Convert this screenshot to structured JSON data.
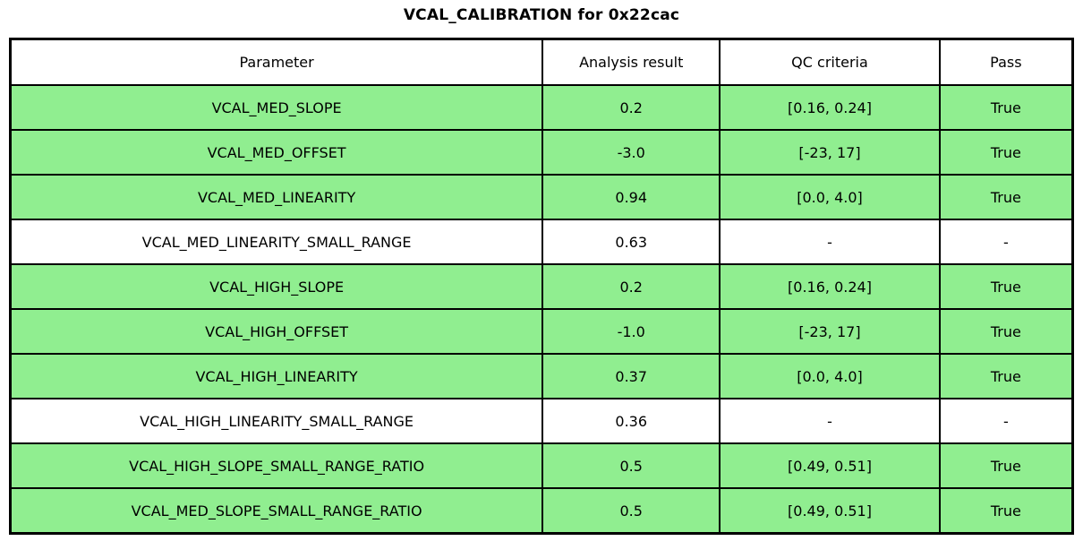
{
  "title": "VCAL_CALIBRATION for 0x22cac",
  "colors": {
    "pass_row_bg": "#90ee90",
    "neutral_row_bg": "#ffffff",
    "border": "#000000"
  },
  "table": {
    "columns": [
      "Parameter",
      "Analysis result",
      "QC criteria",
      "Pass"
    ],
    "rows": [
      {
        "parameter": "VCAL_MED_SLOPE",
        "result": "0.2",
        "qc": "[0.16, 0.24]",
        "pass": "True"
      },
      {
        "parameter": "VCAL_MED_OFFSET",
        "result": "-3.0",
        "qc": "[-23, 17]",
        "pass": "True"
      },
      {
        "parameter": "VCAL_MED_LINEARITY",
        "result": "0.94",
        "qc": "[0.0, 4.0]",
        "pass": "True"
      },
      {
        "parameter": "VCAL_MED_LINEARITY_SMALL_RANGE",
        "result": "0.63",
        "qc": "-",
        "pass": "-"
      },
      {
        "parameter": "VCAL_HIGH_SLOPE",
        "result": "0.2",
        "qc": "[0.16, 0.24]",
        "pass": "True"
      },
      {
        "parameter": "VCAL_HIGH_OFFSET",
        "result": "-1.0",
        "qc": "[-23, 17]",
        "pass": "True"
      },
      {
        "parameter": "VCAL_HIGH_LINEARITY",
        "result": "0.37",
        "qc": "[0.0, 4.0]",
        "pass": "True"
      },
      {
        "parameter": "VCAL_HIGH_LINEARITY_SMALL_RANGE",
        "result": "0.36",
        "qc": "-",
        "pass": "-"
      },
      {
        "parameter": "VCAL_HIGH_SLOPE_SMALL_RANGE_RATIO",
        "result": "0.5",
        "qc": "[0.49, 0.51]",
        "pass": "True"
      },
      {
        "parameter": "VCAL_MED_SLOPE_SMALL_RANGE_RATIO",
        "result": "0.5",
        "qc": "[0.49, 0.51]",
        "pass": "True"
      }
    ]
  },
  "chart_data": {
    "type": "table",
    "title": "VCAL_CALIBRATION for 0x22cac",
    "columns": [
      "Parameter",
      "Analysis result",
      "QC criteria",
      "Pass"
    ],
    "rows": [
      [
        "VCAL_MED_SLOPE",
        "0.2",
        "[0.16, 0.24]",
        "True"
      ],
      [
        "VCAL_MED_OFFSET",
        "-3.0",
        "[-23, 17]",
        "True"
      ],
      [
        "VCAL_MED_LINEARITY",
        "0.94",
        "[0.0, 4.0]",
        "True"
      ],
      [
        "VCAL_MED_LINEARITY_SMALL_RANGE",
        "0.63",
        "-",
        "-"
      ],
      [
        "VCAL_HIGH_SLOPE",
        "0.2",
        "[0.16, 0.24]",
        "True"
      ],
      [
        "VCAL_HIGH_OFFSET",
        "-1.0",
        "[-23, 17]",
        "True"
      ],
      [
        "VCAL_HIGH_LINEARITY",
        "0.37",
        "[0.0, 4.0]",
        "True"
      ],
      [
        "VCAL_HIGH_LINEARITY_SMALL_RANGE",
        "0.36",
        "-",
        "-"
      ],
      [
        "VCAL_HIGH_SLOPE_SMALL_RANGE_RATIO",
        "0.5",
        "[0.49, 0.51]",
        "True"
      ],
      [
        "VCAL_MED_SLOPE_SMALL_RANGE_RATIO",
        "0.5",
        "[0.49, 0.51]",
        "True"
      ]
    ],
    "layout": {
      "row_highlight_color": "#90ee90",
      "grid": true,
      "header_bg": "#ffffff"
    }
  }
}
